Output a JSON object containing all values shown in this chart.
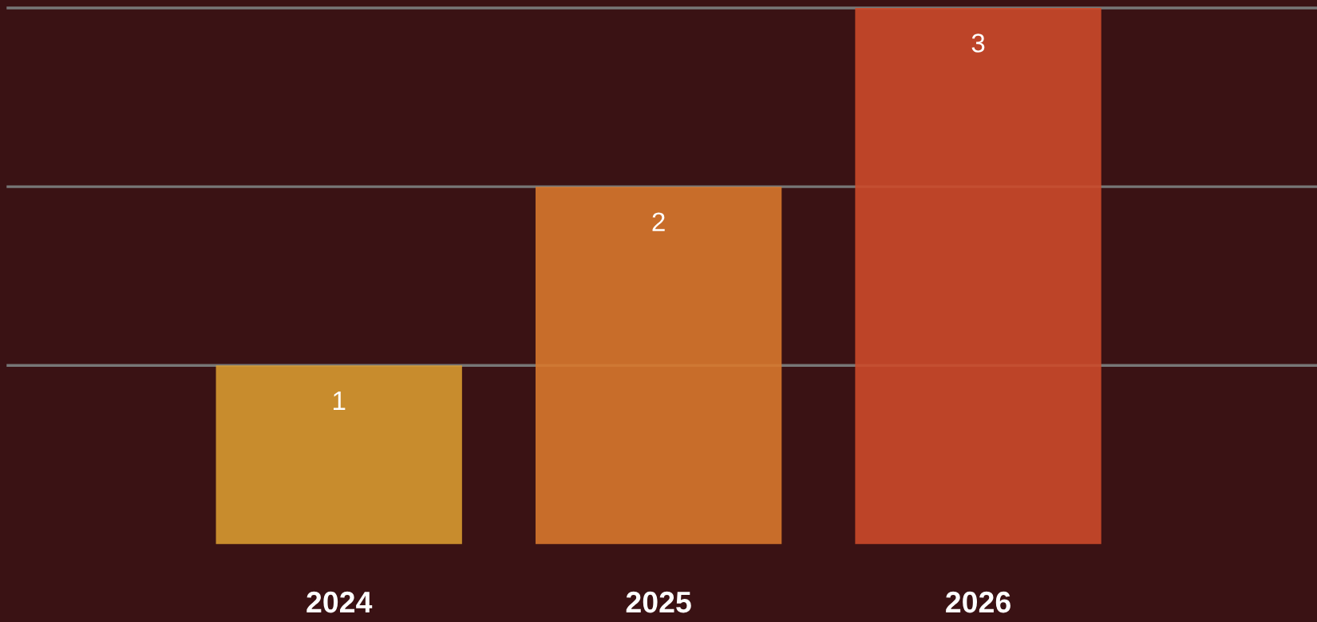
{
  "chart_data": {
    "type": "bar",
    "categories": [
      "2024",
      "2025",
      "2026"
    ],
    "values": [
      1,
      2,
      3
    ],
    "colors": [
      "#d89a30",
      "#d8782c",
      "#cc4a2a"
    ],
    "data_labels": true,
    "ylim": [
      0,
      3.02
    ],
    "yticks": [
      {
        "value": 1,
        "label": null
      },
      {
        "value": 2,
        "label": null
      },
      {
        "value": 3,
        "label": null
      }
    ],
    "tick_labels": "x",
    "grid": "y",
    "legend": false
  }
}
